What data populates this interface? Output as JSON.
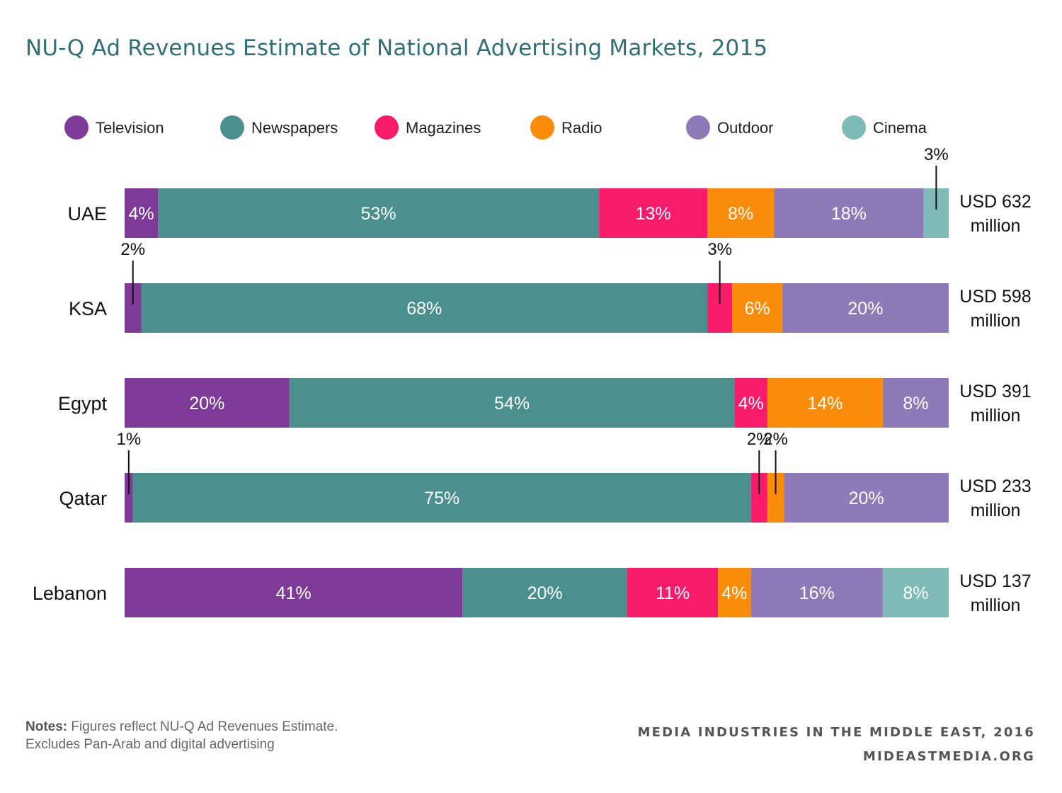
{
  "chart_data": {
    "type": "bar",
    "orientation": "horizontal",
    "stacked": true,
    "title": "NU-Q Ad Revenues Estimate of National Advertising Markets, 2015",
    "legend_position": "top",
    "series_names": [
      "Television",
      "Newspapers",
      "Magazines",
      "Radio",
      "Outdoor",
      "Cinema"
    ],
    "colors": {
      "Television": "#7d3a96",
      "Newspapers": "#4b8f8f",
      "Magazines": "#f71b6a",
      "Radio": "#fb8c0a",
      "Outdoor": "#8e7ab9",
      "Cinema": "#7fbcb8"
    },
    "categories": [
      "UAE",
      "KSA",
      "Egypt",
      "Qatar",
      "Lebanon"
    ],
    "rows": [
      {
        "country": "UAE",
        "total_label": [
          "USD 632",
          "million"
        ],
        "segments": [
          {
            "series": "Television",
            "value": 4,
            "label": "4%"
          },
          {
            "series": "Newspapers",
            "value": 53,
            "label": "53%"
          },
          {
            "series": "Magazines",
            "value": 13,
            "label": "13%"
          },
          {
            "series": "Radio",
            "value": 8,
            "label": "8%"
          },
          {
            "series": "Outdoor",
            "value": 18,
            "label": "18%"
          },
          {
            "series": "Cinema",
            "value": 3,
            "label": "3%",
            "callout": true
          }
        ]
      },
      {
        "country": "KSA",
        "total_label": [
          "USD 598",
          "million"
        ],
        "segments": [
          {
            "series": "Television",
            "value": 2,
            "label": "2%",
            "callout": true
          },
          {
            "series": "Newspapers",
            "value": 68,
            "label": "68%"
          },
          {
            "series": "Magazines",
            "value": 3,
            "label": "3%",
            "callout": true
          },
          {
            "series": "Radio",
            "value": 6,
            "label": "6%"
          },
          {
            "series": "Outdoor",
            "value": 20,
            "label": "20%"
          }
        ]
      },
      {
        "country": "Egypt",
        "total_label": [
          "USD 391",
          "million"
        ],
        "segments": [
          {
            "series": "Television",
            "value": 20,
            "label": "20%"
          },
          {
            "series": "Newspapers",
            "value": 54,
            "label": "54%"
          },
          {
            "series": "Magazines",
            "value": 4,
            "label": "4%"
          },
          {
            "series": "Radio",
            "value": 14,
            "label": "14%"
          },
          {
            "series": "Outdoor",
            "value": 8,
            "label": "8%"
          }
        ]
      },
      {
        "country": "Qatar",
        "total_label": [
          "USD 233",
          "million"
        ],
        "segments": [
          {
            "series": "Television",
            "value": 1,
            "label": "1%",
            "callout": true
          },
          {
            "series": "Newspapers",
            "value": 75,
            "label": "75%"
          },
          {
            "series": "Magazines",
            "value": 2,
            "label": "2%",
            "callout": true
          },
          {
            "series": "Radio",
            "value": 2,
            "label": "2%",
            "callout": true
          },
          {
            "series": "Outdoor",
            "value": 20,
            "label": "20%"
          }
        ]
      },
      {
        "country": "Lebanon",
        "total_label": [
          "USD 137",
          "million"
        ],
        "segments": [
          {
            "series": "Television",
            "value": 41,
            "label": "41%"
          },
          {
            "series": "Newspapers",
            "value": 20,
            "label": "20%"
          },
          {
            "series": "Magazines",
            "value": 11,
            "label": "11%"
          },
          {
            "series": "Radio",
            "value": 4,
            "label": "4%"
          },
          {
            "series": "Outdoor",
            "value": 16,
            "label": "16%"
          },
          {
            "series": "Cinema",
            "value": 8,
            "label": "8%"
          }
        ]
      }
    ]
  },
  "footer": {
    "notes_label": "Notes:",
    "notes_line1": " Figures reflect NU-Q Ad Revenues Estimate.",
    "notes_line2": "Excludes Pan-Arab and digital advertising",
    "source_line1": "MEDIA INDUSTRIES IN THE MIDDLE EAST, 2016",
    "source_line2": "MIDEASTMEDIA.ORG"
  }
}
